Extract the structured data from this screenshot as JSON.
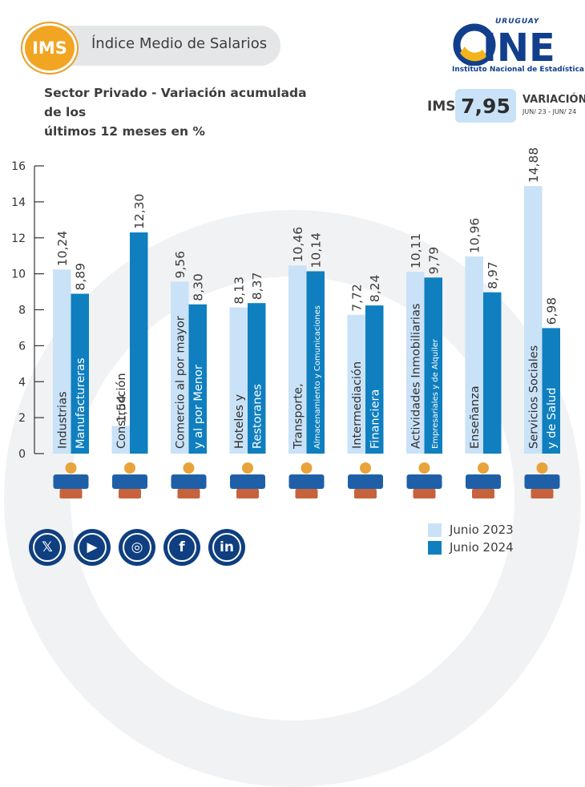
{
  "header": {
    "badge": "IMS",
    "title": "Índice Medio de Salarios"
  },
  "subtitle_line1": "Sector Privado - Variación acumulada de los",
  "subtitle_line2": "últimos 12 meses en %",
  "logo": {
    "top": "URUGUAY",
    "main": "INE",
    "sub": "Instituto Nacional de Estadística"
  },
  "kpi": {
    "label": "IMS",
    "value": "7,95",
    "caption": "VARIACIÓN",
    "period": "JUN/ 23 - JUN/ 24"
  },
  "colors": {
    "junio2023": "#c9e2f7",
    "junio2024": "#0f7fbf",
    "axis": "#333333",
    "navy": "#0f3f80"
  },
  "social": [
    {
      "name": "x-icon",
      "glyph": "𝕏"
    },
    {
      "name": "youtube-icon",
      "glyph": "▶"
    },
    {
      "name": "instagram-icon",
      "glyph": "◎"
    },
    {
      "name": "facebook-icon",
      "glyph": "f"
    },
    {
      "name": "linkedin-icon",
      "glyph": "in"
    }
  ],
  "chart_data": {
    "type": "bar",
    "ylim": [
      0,
      16
    ],
    "yticks": [
      0,
      2,
      4,
      6,
      8,
      10,
      12,
      14,
      16
    ],
    "categories": [
      {
        "line1": "Industrias",
        "line2": "Manufactureras",
        "icon": "factory-workers-icon"
      },
      {
        "line1": "Construcción",
        "line2": "",
        "icon": "construction-worker-icon"
      },
      {
        "line1": "Comercio al por mayor",
        "line2": "y al por Menor",
        "icon": "shop-shelves-icon"
      },
      {
        "line1": "Hoteles y",
        "line2": "Restoranes",
        "icon": "restaurant-icon"
      },
      {
        "line1": "Transporte,",
        "line2": "Almacenamiento y Comunicaciones",
        "icon": "transport-icon"
      },
      {
        "line1": "Intermediación",
        "line2": "Financiera",
        "icon": "finance-icon"
      },
      {
        "line1": "Actividades Inmobiliarias",
        "line2": "Empresariales y de Alquiler",
        "icon": "house-key-icon"
      },
      {
        "line1": "Enseñanza",
        "line2": "",
        "icon": "graduate-icon"
      },
      {
        "line1": "Servicios Sociales",
        "line2": "y de Salud",
        "icon": "hospital-icon"
      }
    ],
    "series": [
      {
        "name": "Junio 2023",
        "values": [
          10.24,
          1.54,
          9.56,
          8.13,
          10.46,
          7.72,
          10.11,
          10.96,
          14.88
        ],
        "labels": [
          "10,24",
          "1,54",
          "9,56",
          "8,13",
          "10,46",
          "7,72",
          "10,11",
          "10,96",
          "14,88"
        ]
      },
      {
        "name": "Junio 2024",
        "values": [
          8.89,
          12.3,
          8.3,
          8.37,
          10.14,
          8.24,
          9.79,
          8.97,
          6.98
        ],
        "labels": [
          "8,89",
          "12,30",
          "8,30",
          "8,37",
          "10,14",
          "8,24",
          "9,79",
          "8,97",
          "6,98"
        ]
      }
    ]
  }
}
